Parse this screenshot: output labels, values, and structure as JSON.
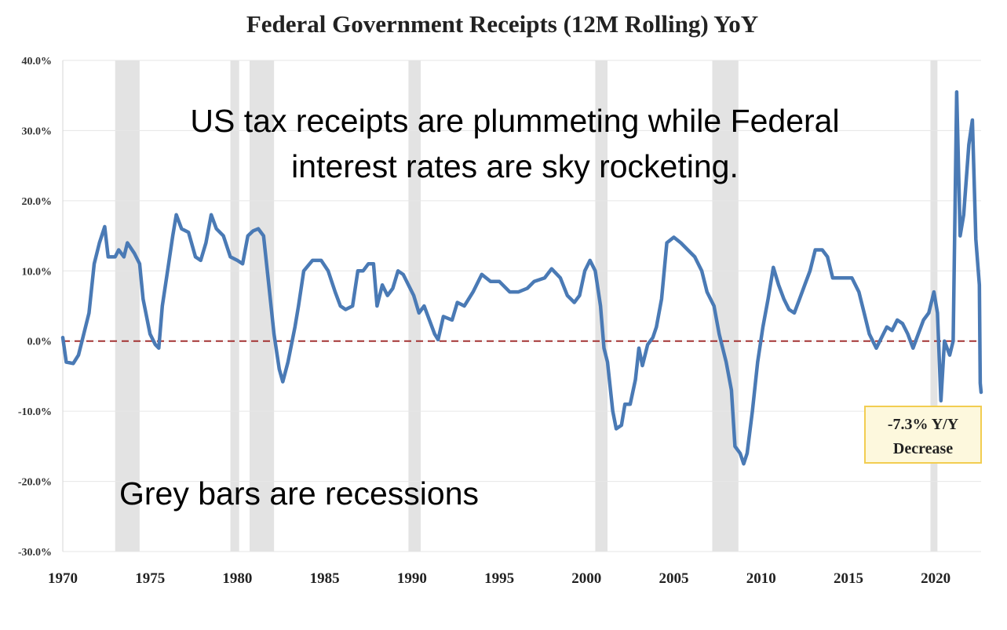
{
  "chart_data": {
    "type": "line",
    "title": "Federal Government Receipts (12M Rolling) YoY",
    "ylim": [
      -30,
      40
    ],
    "y_ticks": [
      "40.0%",
      "30.0%",
      "20.0%",
      "10.0%",
      "0.0%",
      "-10.0%",
      "-20.0%",
      "-30.0%"
    ],
    "y_tick_values": [
      40,
      30,
      20,
      10,
      0,
      -10,
      -20,
      -30
    ],
    "xlim": [
      1970,
      2022.6
    ],
    "x_ticks": [
      "1970",
      "1975",
      "1980",
      "1985",
      "1990",
      "1995",
      "2000",
      "2005",
      "2010",
      "2015",
      "2020"
    ],
    "x_tick_values": [
      1970,
      1975,
      1980,
      1985,
      1990,
      1995,
      2000,
      2005,
      2010,
      2015,
      2020
    ],
    "grid": "horizontal",
    "zero_reference_line": {
      "value": 0,
      "color": "#a33333",
      "style": "dashed"
    },
    "recessions": [
      [
        1973.0,
        1974.4
      ],
      [
        1979.6,
        1980.1
      ],
      [
        1980.7,
        1982.1
      ],
      [
        1989.8,
        1990.5
      ],
      [
        2000.5,
        2001.2
      ],
      [
        2007.2,
        2008.7
      ],
      [
        2019.7,
        2020.1
      ]
    ],
    "series": [
      {
        "color": "#4a7ab5",
        "points": [
          [
            1970.0,
            0.5
          ],
          [
            1970.2,
            -3.0
          ],
          [
            1970.6,
            -3.2
          ],
          [
            1970.9,
            -2.0
          ],
          [
            1971.2,
            1.0
          ],
          [
            1971.5,
            4.0
          ],
          [
            1971.8,
            11.0
          ],
          [
            1972.1,
            14.0
          ],
          [
            1972.4,
            16.3
          ],
          [
            1972.6,
            12.0
          ],
          [
            1973.0,
            12.0
          ],
          [
            1973.2,
            13.0
          ],
          [
            1973.5,
            12.0
          ],
          [
            1973.7,
            14.0
          ],
          [
            1974.1,
            12.5
          ],
          [
            1974.4,
            11.0
          ],
          [
            1974.6,
            6.0
          ],
          [
            1975.0,
            1.0
          ],
          [
            1975.3,
            -0.5
          ],
          [
            1975.5,
            -1.0
          ],
          [
            1975.7,
            5.0
          ],
          [
            1976.0,
            10.0
          ],
          [
            1976.3,
            15.0
          ],
          [
            1976.5,
            18.0
          ],
          [
            1976.8,
            16.0
          ],
          [
            1977.2,
            15.5
          ],
          [
            1977.6,
            12.0
          ],
          [
            1977.9,
            11.5
          ],
          [
            1978.2,
            14.0
          ],
          [
            1978.5,
            18.0
          ],
          [
            1978.8,
            16.0
          ],
          [
            1979.2,
            15.0
          ],
          [
            1979.6,
            12.0
          ],
          [
            1980.0,
            11.5
          ],
          [
            1980.3,
            11.0
          ],
          [
            1980.6,
            15.0
          ],
          [
            1980.9,
            15.7
          ],
          [
            1981.2,
            16.0
          ],
          [
            1981.5,
            15.0
          ],
          [
            1981.8,
            8.0
          ],
          [
            1982.1,
            1.0
          ],
          [
            1982.4,
            -4.0
          ],
          [
            1982.6,
            -5.8
          ],
          [
            1982.9,
            -3.0
          ],
          [
            1983.3,
            2.0
          ],
          [
            1983.5,
            5.0
          ],
          [
            1983.8,
            10.0
          ],
          [
            1984.3,
            11.5
          ],
          [
            1984.8,
            11.5
          ],
          [
            1985.2,
            10.0
          ],
          [
            1985.6,
            7.0
          ],
          [
            1985.9,
            5.0
          ],
          [
            1986.2,
            4.5
          ],
          [
            1986.6,
            5.0
          ],
          [
            1986.9,
            10.0
          ],
          [
            1987.2,
            10.0
          ],
          [
            1987.5,
            11.0
          ],
          [
            1987.8,
            11.0
          ],
          [
            1988.0,
            5.0
          ],
          [
            1988.3,
            8.0
          ],
          [
            1988.6,
            6.5
          ],
          [
            1988.9,
            7.5
          ],
          [
            1989.2,
            10.0
          ],
          [
            1989.5,
            9.5
          ],
          [
            1989.8,
            8.0
          ],
          [
            1990.1,
            6.5
          ],
          [
            1990.4,
            4.0
          ],
          [
            1990.7,
            5.0
          ],
          [
            1991.0,
            3.0
          ],
          [
            1991.3,
            1.0
          ],
          [
            1991.5,
            0.2
          ],
          [
            1991.8,
            3.5
          ],
          [
            1992.3,
            3.0
          ],
          [
            1992.6,
            5.5
          ],
          [
            1993.0,
            5.0
          ],
          [
            1993.5,
            7.0
          ],
          [
            1994.0,
            9.5
          ],
          [
            1994.5,
            8.5
          ],
          [
            1995.0,
            8.5
          ],
          [
            1995.6,
            7.0
          ],
          [
            1996.1,
            7.0
          ],
          [
            1996.6,
            7.5
          ],
          [
            1997.0,
            8.5
          ],
          [
            1997.6,
            9.0
          ],
          [
            1998.0,
            10.3
          ],
          [
            1998.5,
            9.0
          ],
          [
            1998.9,
            6.5
          ],
          [
            1999.3,
            5.5
          ],
          [
            1999.6,
            6.5
          ],
          [
            1999.9,
            10.0
          ],
          [
            2000.2,
            11.5
          ],
          [
            2000.5,
            10.0
          ],
          [
            2000.8,
            5.0
          ],
          [
            2001.0,
            -1.0
          ],
          [
            2001.2,
            -3.0
          ],
          [
            2001.5,
            -10.0
          ],
          [
            2001.7,
            -12.5
          ],
          [
            2002.0,
            -12.0
          ],
          [
            2002.2,
            -9.0
          ],
          [
            2002.5,
            -9.0
          ],
          [
            2002.8,
            -5.5
          ],
          [
            2003.0,
            -1.0
          ],
          [
            2003.2,
            -3.5
          ],
          [
            2003.5,
            -0.5
          ],
          [
            2003.8,
            0.5
          ],
          [
            2004.0,
            2.0
          ],
          [
            2004.3,
            6.0
          ],
          [
            2004.6,
            14.0
          ],
          [
            2005.0,
            14.8
          ],
          [
            2005.4,
            14.0
          ],
          [
            2005.8,
            13.0
          ],
          [
            2006.2,
            12.0
          ],
          [
            2006.6,
            10.0
          ],
          [
            2006.9,
            7.0
          ],
          [
            2007.3,
            5.0
          ],
          [
            2007.6,
            1.0
          ],
          [
            2008.0,
            -3.0
          ],
          [
            2008.3,
            -7.0
          ],
          [
            2008.5,
            -15.0
          ],
          [
            2008.8,
            -16.0
          ],
          [
            2009.0,
            -17.5
          ],
          [
            2009.2,
            -16.0
          ],
          [
            2009.5,
            -10.0
          ],
          [
            2009.8,
            -3.0
          ],
          [
            2010.1,
            2.0
          ],
          [
            2010.4,
            6.0
          ],
          [
            2010.7,
            10.5
          ],
          [
            2011.0,
            8.0
          ],
          [
            2011.3,
            6.0
          ],
          [
            2011.6,
            4.5
          ],
          [
            2011.9,
            4.0
          ],
          [
            2012.2,
            6.0
          ],
          [
            2012.5,
            8.0
          ],
          [
            2012.8,
            10.0
          ],
          [
            2013.1,
            13.0
          ],
          [
            2013.5,
            13.0
          ],
          [
            2013.8,
            12.0
          ],
          [
            2014.1,
            9.0
          ],
          [
            2014.5,
            9.0
          ],
          [
            2014.9,
            9.0
          ],
          [
            2015.2,
            9.0
          ],
          [
            2015.6,
            7.0
          ],
          [
            2015.9,
            4.0
          ],
          [
            2016.2,
            1.0
          ],
          [
            2016.6,
            -1.0
          ],
          [
            2016.9,
            0.5
          ],
          [
            2017.2,
            2.0
          ],
          [
            2017.5,
            1.5
          ],
          [
            2017.8,
            3.0
          ],
          [
            2018.1,
            2.5
          ],
          [
            2018.4,
            1.0
          ],
          [
            2018.7,
            -1.0
          ],
          [
            2019.0,
            1.0
          ],
          [
            2019.3,
            3.0
          ],
          [
            2019.6,
            4.0
          ],
          [
            2019.9,
            7.0
          ],
          [
            2020.1,
            4.0
          ],
          [
            2020.3,
            -8.5
          ],
          [
            2020.5,
            0.0
          ],
          [
            2020.8,
            -2.0
          ],
          [
            2021.0,
            0.0
          ],
          [
            2021.2,
            35.5
          ],
          [
            2021.4,
            15.0
          ],
          [
            2021.6,
            18.0
          ],
          [
            2021.9,
            28.0
          ],
          [
            2022.1,
            31.5
          ],
          [
            2022.3,
            14.5
          ],
          [
            2022.5,
            8.0
          ],
          [
            2022.55,
            -6.0
          ],
          [
            2022.6,
            -7.3
          ]
        ]
      }
    ],
    "annotations": [
      {
        "text": "US tax receipts are plummeting while Federal",
        "role": "overlay-line-1"
      },
      {
        "text": "interest rates are sky rocketing.",
        "role": "overlay-line-2"
      },
      {
        "text": "Grey bars are recessions",
        "role": "overlay-bottom"
      }
    ],
    "callout": {
      "line1": "-7.3% Y/Y",
      "line2": "Decrease",
      "background": "#fdf8dd",
      "border": "#f2cd51"
    },
    "colors": {
      "line": "#4a7ab5",
      "recession": "#e3e3e3",
      "grid": "#e6e6e6",
      "zero_line": "#a33333"
    }
  }
}
